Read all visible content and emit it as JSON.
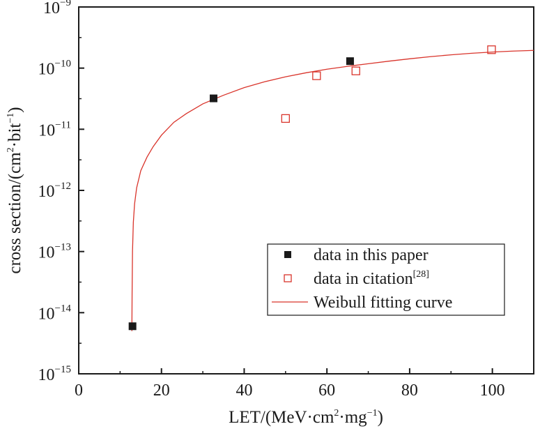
{
  "chart_data": {
    "type": "scatter",
    "x_scale": "linear",
    "y_scale": "log",
    "xlim": [
      0,
      110
    ],
    "ylim": [
      1e-15,
      1e-09
    ],
    "x_ticks": [
      {
        "value": 0,
        "label": "0"
      },
      {
        "value": 20,
        "label": "20"
      },
      {
        "value": 40,
        "label": "40"
      },
      {
        "value": 60,
        "label": "60"
      },
      {
        "value": 80,
        "label": "80"
      },
      {
        "value": 100,
        "label": "100"
      }
    ],
    "y_ticks": [
      {
        "value": 1e-15,
        "base": "10",
        "exp": "−15"
      },
      {
        "value": 1e-14,
        "base": "10",
        "exp": "−14"
      },
      {
        "value": 1e-13,
        "base": "10",
        "exp": "−13"
      },
      {
        "value": 1e-12,
        "base": "10",
        "exp": "−12"
      },
      {
        "value": 1e-11,
        "base": "10",
        "exp": "−11"
      },
      {
        "value": 1e-10,
        "base": "10",
        "exp": "−10"
      },
      {
        "value": 1e-09,
        "base": "10",
        "exp": "−9"
      }
    ],
    "xlabel": {
      "pre": "LET/(MeV·cm",
      "sup1": "2",
      "mid": "·mg",
      "sup2": "−1",
      "post": ")"
    },
    "ylabel": {
      "pre": "cross section/(cm",
      "sup1": "2",
      "mid": "·bit",
      "sup2": "−1",
      "post": ")"
    },
    "grid": false,
    "legend_position": "bottom-right",
    "series": [
      {
        "name": "data in this paper",
        "marker": "filled-square",
        "color": "#1a1a1a",
        "points": [
          {
            "x": 13,
            "y": 6e-15
          },
          {
            "x": 32.6,
            "y": 3.2e-11
          },
          {
            "x": 65.6,
            "y": 1.3e-10
          }
        ]
      },
      {
        "name": "data in citation",
        "name_sup": "[28]",
        "marker": "open-square",
        "color": "#d9342b",
        "points": [
          {
            "x": 50,
            "y": 1.5e-11
          },
          {
            "x": 57.5,
            "y": 7.5e-11
          },
          {
            "x": 67,
            "y": 9e-11
          },
          {
            "x": 99.8,
            "y": 2e-10
          }
        ]
      },
      {
        "name": "Weibull fitting curve",
        "type": "line",
        "color": "#d9342b",
        "points": [
          {
            "x": 12.85,
            "y": 5e-15
          },
          {
            "x": 12.9,
            "y": 2e-14
          },
          {
            "x": 13,
            "y": 1e-13
          },
          {
            "x": 13.2,
            "y": 3e-13
          },
          {
            "x": 13.5,
            "y": 6e-13
          },
          {
            "x": 14,
            "y": 1.1e-12
          },
          {
            "x": 15,
            "y": 2.1e-12
          },
          {
            "x": 16.5,
            "y": 3.5e-12
          },
          {
            "x": 18,
            "y": 5.2e-12
          },
          {
            "x": 20,
            "y": 8e-12
          },
          {
            "x": 23,
            "y": 1.3e-11
          },
          {
            "x": 26,
            "y": 1.8e-11
          },
          {
            "x": 30,
            "y": 2.6e-11
          },
          {
            "x": 35,
            "y": 3.6e-11
          },
          {
            "x": 40,
            "y": 4.8e-11
          },
          {
            "x": 45,
            "y": 6e-11
          },
          {
            "x": 50,
            "y": 7.2e-11
          },
          {
            "x": 55,
            "y": 8.4e-11
          },
          {
            "x": 60,
            "y": 9.6e-11
          },
          {
            "x": 65,
            "y": 1.07e-10
          },
          {
            "x": 70,
            "y": 1.18e-10
          },
          {
            "x": 75,
            "y": 1.3e-10
          },
          {
            "x": 80,
            "y": 1.42e-10
          },
          {
            "x": 85,
            "y": 1.54e-10
          },
          {
            "x": 90,
            "y": 1.65e-10
          },
          {
            "x": 95,
            "y": 1.75e-10
          },
          {
            "x": 100,
            "y": 1.83e-10
          },
          {
            "x": 105,
            "y": 1.9e-10
          },
          {
            "x": 110,
            "y": 1.95e-10
          }
        ]
      }
    ]
  }
}
